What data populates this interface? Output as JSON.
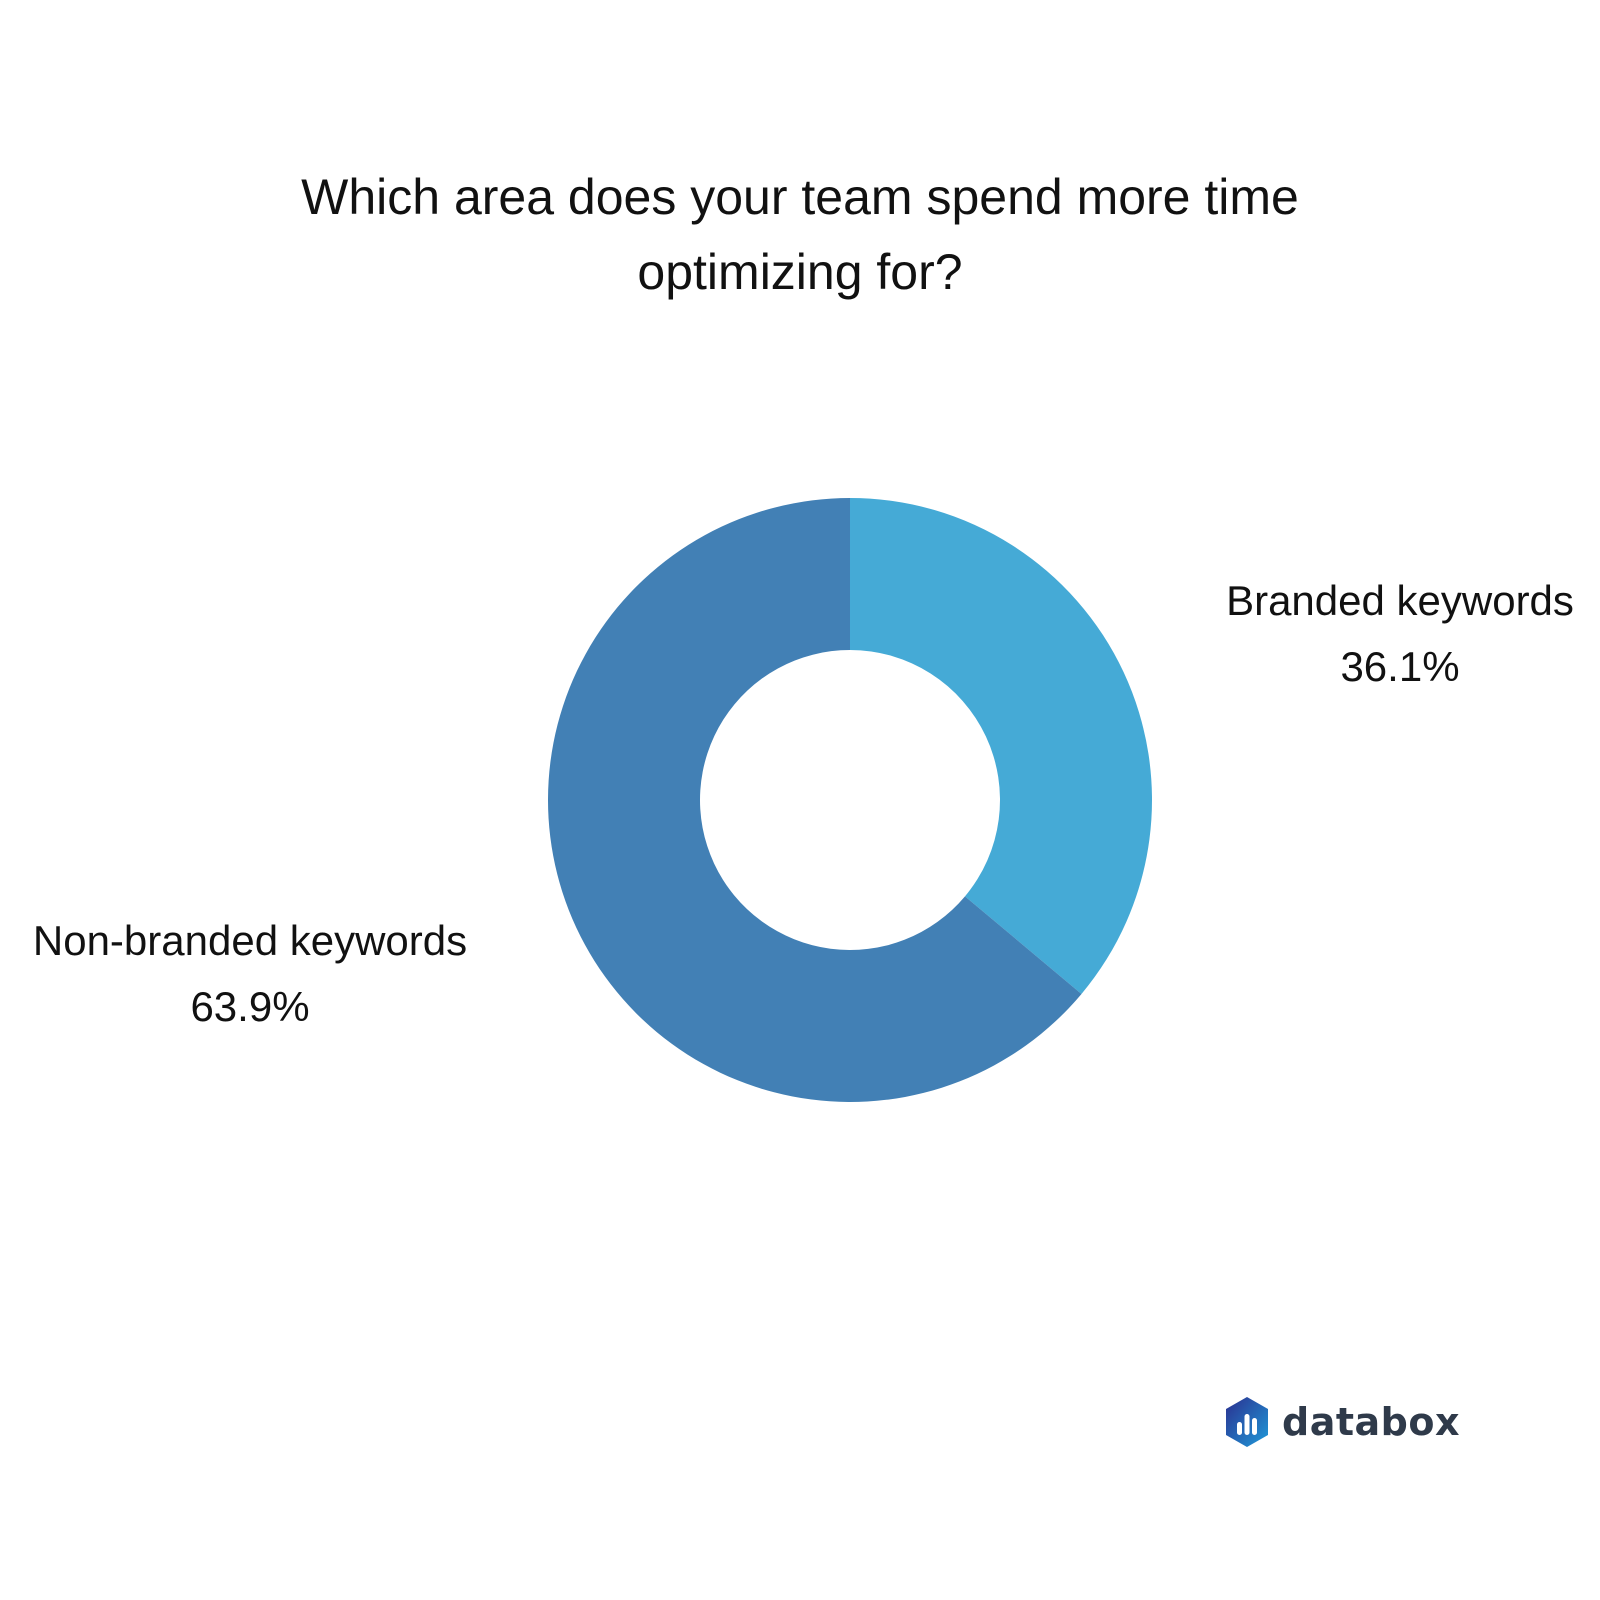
{
  "chart_data": {
    "type": "pie",
    "variant": "donut",
    "title_lines": [
      "Which area does your team spend more time",
      "optimizing for?"
    ],
    "slices": [
      {
        "label": "Branded keywords",
        "value": 36.1,
        "value_label": "36.1%",
        "color": "#45aad6"
      },
      {
        "label": "Non-branded keywords",
        "value": 63.9,
        "value_label": "63.9%",
        "color": "#4280b5"
      }
    ],
    "start_angle_deg": 0,
    "direction": "clockwise"
  },
  "branding": {
    "name": "databox",
    "logo_colors": [
      "#2b2f8f",
      "#1f9ad9"
    ]
  }
}
